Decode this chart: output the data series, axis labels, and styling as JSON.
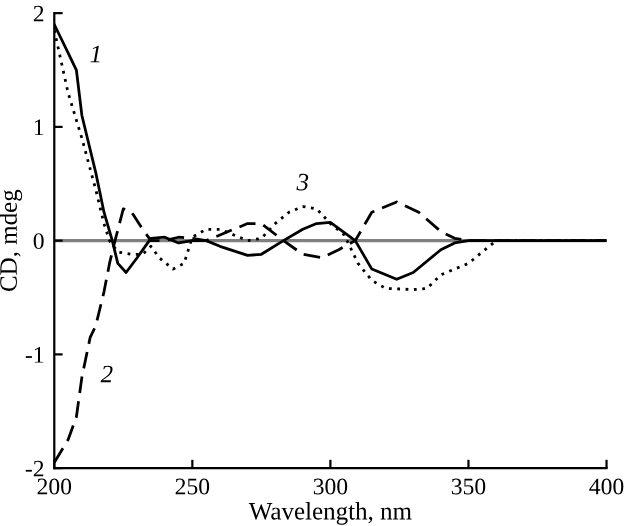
{
  "chart_data": {
    "type": "line",
    "xlabel": "Wavelength, nm",
    "ylabel": "CD, mdeg",
    "xlim": [
      200,
      400
    ],
    "ylim": [
      -2,
      2
    ],
    "xticks": [
      200,
      250,
      300,
      350,
      400
    ],
    "yticks": [
      -2,
      -1,
      0,
      1,
      2
    ],
    "grid": false,
    "legend": false,
    "ref_lines": [
      {
        "axis": "y",
        "value": 0,
        "color": "#808080"
      }
    ],
    "series": [
      {
        "name": "1",
        "color": "#000000",
        "line_style": "solid",
        "x": [
          200,
          205,
          208,
          210,
          215,
          218,
          221,
          223,
          226,
          230,
          235,
          240,
          245,
          250,
          255,
          260,
          270,
          275,
          283,
          290,
          295,
          300,
          309,
          315,
          324,
          330,
          340,
          345,
          350,
          400
        ],
        "values": [
          1.9,
          1.65,
          1.5,
          1.1,
          0.6,
          0.25,
          0,
          -0.2,
          -0.28,
          -0.15,
          0.02,
          0.03,
          -0.02,
          0,
          0,
          -0.05,
          -0.13,
          -0.12,
          0,
          0.1,
          0.15,
          0.16,
          0,
          -0.25,
          -0.34,
          -0.28,
          -0.08,
          -0.02,
          0,
          0
        ]
      },
      {
        "name": "2",
        "color": "#000000",
        "line_style": "dashed",
        "x": [
          200,
          205,
          208,
          210,
          213,
          215,
          218,
          220,
          222,
          225,
          228,
          232,
          235,
          240,
          245,
          250,
          255,
          260,
          265,
          270,
          275,
          283,
          290,
          297,
          303,
          309,
          315,
          324,
          332,
          340,
          345,
          350,
          400
        ],
        "values": [
          -1.95,
          -1.75,
          -1.55,
          -1.2,
          -0.85,
          -0.75,
          -0.45,
          -0.2,
          0,
          0.28,
          0.25,
          0.1,
          0,
          0,
          0.03,
          0.02,
          0,
          0.05,
          0.1,
          0.15,
          0.15,
          0,
          -0.12,
          -0.15,
          -0.08,
          0,
          0.25,
          0.34,
          0.25,
          0.08,
          0.02,
          0,
          0
        ]
      },
      {
        "name": "3",
        "color": "#000000",
        "line_style": "dotted",
        "x": [
          200,
          205,
          210,
          215,
          218,
          220,
          223,
          228,
          232,
          235,
          238,
          243,
          247,
          250,
          255,
          260,
          265,
          270,
          275,
          280,
          285,
          290,
          295,
          300,
          305,
          310,
          315,
          320,
          330,
          335,
          340,
          345,
          350,
          355,
          360,
          400
        ],
        "values": [
          1.85,
          1.3,
          0.9,
          0.45,
          0.15,
          0,
          -0.1,
          -0.12,
          -0.12,
          -0.05,
          -0.15,
          -0.25,
          -0.2,
          0.03,
          0.1,
          0.1,
          0.05,
          0,
          0.02,
          0.15,
          0.25,
          0.3,
          0.28,
          0.15,
          0.05,
          -0.2,
          -0.35,
          -0.42,
          -0.43,
          -0.42,
          -0.3,
          -0.25,
          -0.2,
          -0.1,
          0,
          0
        ]
      }
    ]
  }
}
